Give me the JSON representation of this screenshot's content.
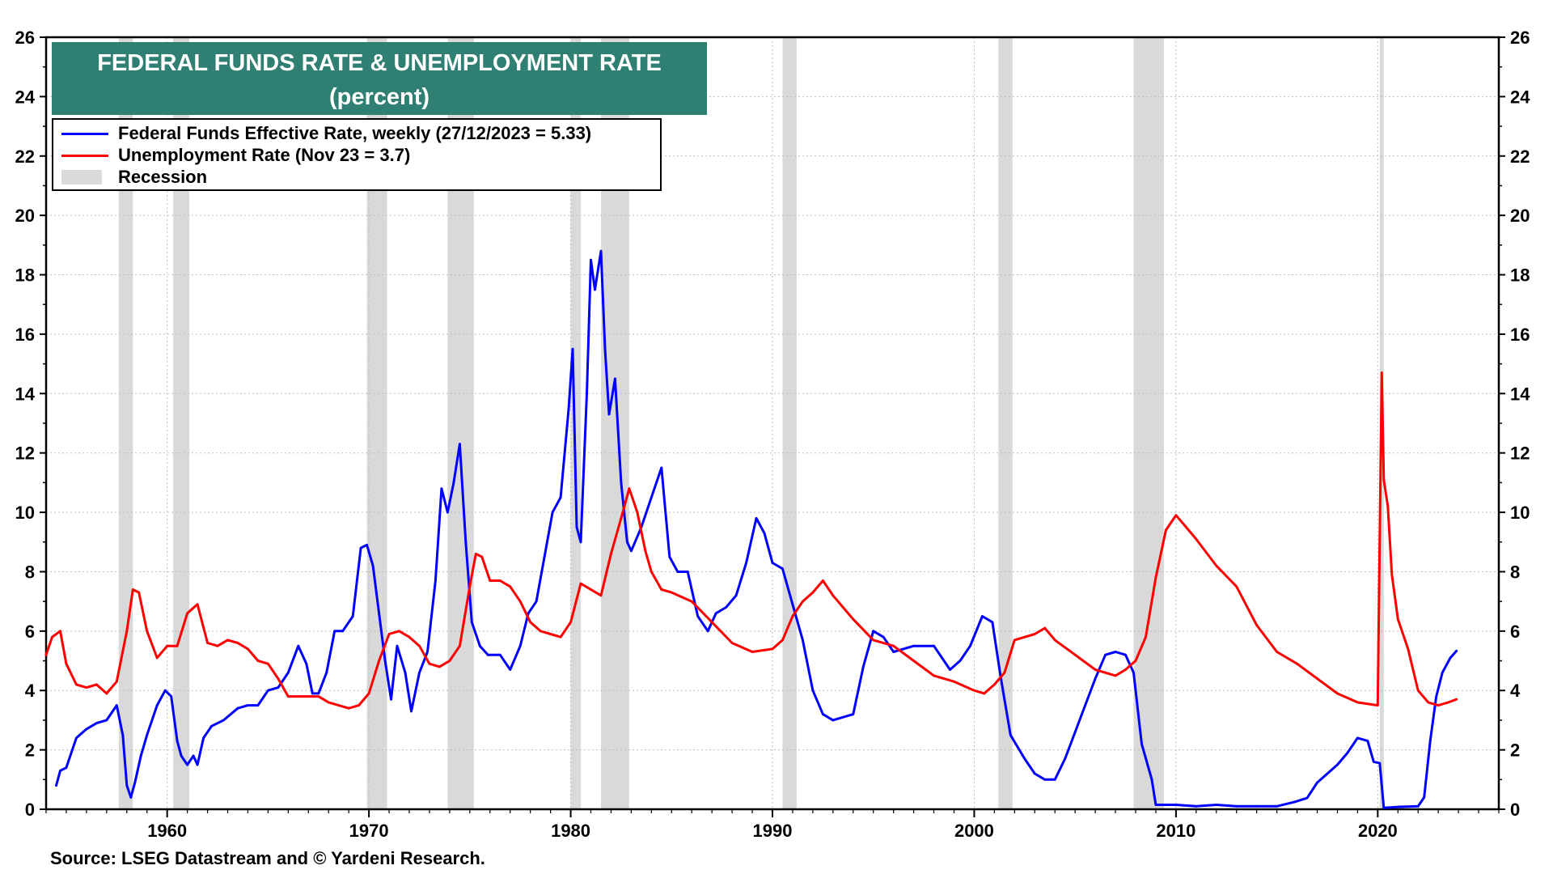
{
  "chart_data": {
    "type": "line",
    "title": "FEDERAL FUNDS RATE & UNEMPLOYMENT RATE",
    "subtitle": "(percent)",
    "xlabel": "",
    "ylabel": "",
    "xlim": [
      1954,
      2026
    ],
    "ylim": [
      0,
      26
    ],
    "x_ticks": [
      1960,
      1970,
      1980,
      1990,
      2000,
      2010,
      2020
    ],
    "x_tick_labels": [
      "1960",
      "1970",
      "1980",
      "1990",
      "2000",
      "2010",
      "2020"
    ],
    "y_ticks": [
      0,
      2,
      4,
      6,
      8,
      10,
      12,
      14,
      16,
      18,
      20,
      22,
      24,
      26
    ],
    "y_tick_labels": [
      "0",
      "2",
      "4",
      "6",
      "8",
      "10",
      "12",
      "14",
      "16",
      "18",
      "20",
      "22",
      "24",
      "26"
    ],
    "grid": true,
    "legend_position": "top-left",
    "recessions": [
      [
        1957.6,
        1958.3
      ],
      [
        1960.3,
        1961.1
      ],
      [
        1969.9,
        1970.9
      ],
      [
        1973.9,
        1975.2
      ],
      [
        1980.0,
        1980.5
      ],
      [
        1981.5,
        1982.9
      ],
      [
        1990.5,
        1991.2
      ],
      [
        2001.2,
        2001.9
      ],
      [
        2007.9,
        2009.4
      ],
      [
        2020.1,
        2020.3
      ]
    ],
    "series": [
      {
        "name": "Federal Funds Effective Rate, weekly (27/12/2023 = 5.33)",
        "color": "#0000ff",
        "x": [
          1954.5,
          1954.7,
          1955.0,
          1955.5,
          1956.0,
          1956.5,
          1957.0,
          1957.5,
          1957.8,
          1958.0,
          1958.2,
          1958.4,
          1958.7,
          1959.0,
          1959.5,
          1959.9,
          1960.2,
          1960.5,
          1960.7,
          1961.0,
          1961.3,
          1961.5,
          1961.8,
          1962.2,
          1962.8,
          1963.5,
          1964.0,
          1964.5,
          1965.0,
          1965.5,
          1966.0,
          1966.5,
          1966.9,
          1967.2,
          1967.5,
          1967.9,
          1968.3,
          1968.7,
          1969.2,
          1969.6,
          1969.9,
          1970.2,
          1970.5,
          1970.8,
          1971.1,
          1971.4,
          1971.8,
          1972.1,
          1972.5,
          1972.9,
          1973.3,
          1973.6,
          1973.9,
          1974.2,
          1974.5,
          1974.8,
          1975.1,
          1975.5,
          1975.9,
          1976.5,
          1977.0,
          1977.5,
          1977.9,
          1978.3,
          1978.7,
          1979.1,
          1979.5,
          1979.9,
          1980.1,
          1980.3,
          1980.5,
          1980.8,
          1981.0,
          1981.2,
          1981.5,
          1981.7,
          1981.9,
          1982.2,
          1982.5,
          1982.8,
          1983.0,
          1983.5,
          1984.0,
          1984.5,
          1984.9,
          1985.3,
          1985.8,
          1986.3,
          1986.8,
          1987.2,
          1987.7,
          1988.2,
          1988.7,
          1989.2,
          1989.6,
          1990.0,
          1990.5,
          1991.0,
          1991.5,
          1992.0,
          1992.5,
          1993.0,
          1994.0,
          1994.5,
          1995.0,
          1995.5,
          1996.0,
          1997.0,
          1998.0,
          1998.8,
          1999.3,
          1999.8,
          2000.4,
          2000.9,
          2001.3,
          2001.8,
          2002.5,
          2003.0,
          2003.5,
          2004.0,
          2004.5,
          2005.0,
          2005.5,
          2006.0,
          2006.5,
          2007.0,
          2007.5,
          2007.9,
          2008.3,
          2008.8,
          2009.0,
          2010.0,
          2011.0,
          2012.0,
          2013.0,
          2014.0,
          2015.0,
          2015.9,
          2016.5,
          2017.0,
          2017.5,
          2018.0,
          2018.5,
          2019.0,
          2019.5,
          2019.8,
          2020.1,
          2020.3,
          2021.0,
          2022.0,
          2022.3,
          2022.6,
          2022.9,
          2023.2,
          2023.6,
          2023.9
        ],
        "values": [
          0.8,
          1.3,
          1.4,
          2.4,
          2.7,
          2.9,
          3.0,
          3.5,
          2.5,
          0.8,
          0.4,
          0.9,
          1.8,
          2.5,
          3.5,
          4.0,
          3.8,
          2.3,
          1.8,
          1.5,
          1.8,
          1.5,
          2.4,
          2.8,
          3.0,
          3.4,
          3.5,
          3.5,
          4.0,
          4.1,
          4.6,
          5.5,
          4.9,
          3.9,
          3.9,
          4.6,
          6.0,
          6.0,
          6.5,
          8.8,
          8.9,
          8.2,
          6.6,
          5.0,
          3.7,
          5.5,
          4.6,
          3.3,
          4.6,
          5.3,
          7.7,
          10.8,
          10.0,
          11.0,
          12.3,
          9.0,
          6.3,
          5.5,
          5.2,
          5.2,
          4.7,
          5.5,
          6.6,
          7.0,
          8.5,
          10.0,
          10.5,
          13.5,
          15.5,
          9.5,
          9.0,
          14.0,
          18.5,
          17.5,
          18.8,
          15.5,
          13.3,
          14.5,
          11.0,
          9.0,
          8.7,
          9.5,
          10.5,
          11.5,
          8.5,
          8.0,
          8.0,
          6.5,
          6.0,
          6.6,
          6.8,
          7.2,
          8.3,
          9.8,
          9.3,
          8.3,
          8.1,
          6.9,
          5.7,
          4.0,
          3.2,
          3.0,
          3.2,
          4.8,
          6.0,
          5.8,
          5.3,
          5.5,
          5.5,
          4.7,
          5.0,
          5.5,
          6.5,
          6.3,
          4.5,
          2.5,
          1.7,
          1.2,
          1.0,
          1.0,
          1.7,
          2.6,
          3.5,
          4.4,
          5.2,
          5.3,
          5.2,
          4.6,
          2.2,
          1.0,
          0.15,
          0.15,
          0.1,
          0.15,
          0.1,
          0.1,
          0.1,
          0.25,
          0.38,
          0.9,
          1.2,
          1.5,
          1.9,
          2.4,
          2.3,
          1.6,
          1.55,
          0.05,
          0.08,
          0.1,
          0.4,
          2.3,
          3.8,
          4.6,
          5.1,
          5.33
        ]
      },
      {
        "name": "Unemployment Rate (Nov 23 = 3.7)",
        "color": "#ff0000",
        "x": [
          1954.0,
          1954.3,
          1954.7,
          1955.0,
          1955.5,
          1956.0,
          1956.5,
          1957.0,
          1957.5,
          1958.0,
          1958.3,
          1958.6,
          1959.0,
          1959.5,
          1960.0,
          1960.5,
          1961.0,
          1961.5,
          1962.0,
          1962.5,
          1963.0,
          1963.5,
          1964.0,
          1964.5,
          1965.0,
          1965.5,
          1966.0,
          1966.5,
          1967.0,
          1967.5,
          1968.0,
          1968.5,
          1969.0,
          1969.5,
          1970.0,
          1970.5,
          1971.0,
          1971.5,
          1972.0,
          1972.5,
          1973.0,
          1973.5,
          1974.0,
          1974.5,
          1975.0,
          1975.3,
          1975.6,
          1976.0,
          1976.5,
          1977.0,
          1977.5,
          1978.0,
          1978.5,
          1979.0,
          1979.5,
          1980.0,
          1980.5,
          1981.0,
          1981.5,
          1982.0,
          1982.5,
          1982.9,
          1983.3,
          1983.7,
          1984.0,
          1984.5,
          1985.0,
          1986.0,
          1987.0,
          1988.0,
          1989.0,
          1990.0,
          1990.5,
          1991.0,
          1991.5,
          1992.0,
          1992.5,
          1993.0,
          1993.5,
          1994.0,
          1995.0,
          1996.0,
          1997.0,
          1998.0,
          1999.0,
          2000.0,
          2000.5,
          2001.0,
          2001.5,
          2002.0,
          2002.5,
          2003.0,
          2003.5,
          2004.0,
          2005.0,
          2006.0,
          2007.0,
          2007.5,
          2008.0,
          2008.5,
          2009.0,
          2009.5,
          2010.0,
          2010.5,
          2011.0,
          2012.0,
          2013.0,
          2014.0,
          2015.0,
          2016.0,
          2017.0,
          2018.0,
          2019.0,
          2020.0,
          2020.2,
          2020.3,
          2020.5,
          2020.7,
          2021.0,
          2021.5,
          2022.0,
          2022.5,
          2023.0,
          2023.5,
          2023.9
        ],
        "values": [
          5.2,
          5.8,
          6.0,
          4.9,
          4.2,
          4.1,
          4.2,
          3.9,
          4.3,
          6.0,
          7.4,
          7.3,
          6.0,
          5.1,
          5.5,
          5.5,
          6.6,
          6.9,
          5.6,
          5.5,
          5.7,
          5.6,
          5.4,
          5.0,
          4.9,
          4.4,
          3.8,
          3.8,
          3.8,
          3.8,
          3.6,
          3.5,
          3.4,
          3.5,
          3.9,
          5.0,
          5.9,
          6.0,
          5.8,
          5.5,
          4.9,
          4.8,
          5.0,
          5.5,
          7.5,
          8.6,
          8.5,
          7.7,
          7.7,
          7.5,
          7.0,
          6.3,
          6.0,
          5.9,
          5.8,
          6.3,
          7.6,
          7.4,
          7.2,
          8.6,
          9.8,
          10.8,
          10.0,
          8.7,
          8.0,
          7.4,
          7.3,
          7.0,
          6.3,
          5.6,
          5.3,
          5.4,
          5.7,
          6.5,
          7.0,
          7.3,
          7.7,
          7.2,
          6.8,
          6.4,
          5.7,
          5.5,
          5.0,
          4.5,
          4.3,
          4.0,
          3.9,
          4.2,
          4.6,
          5.7,
          5.8,
          5.9,
          6.1,
          5.7,
          5.2,
          4.7,
          4.5,
          4.7,
          5.0,
          5.8,
          7.8,
          9.4,
          9.9,
          9.5,
          9.1,
          8.2,
          7.5,
          6.2,
          5.3,
          4.9,
          4.4,
          3.9,
          3.6,
          3.5,
          14.7,
          11.1,
          10.2,
          7.9,
          6.4,
          5.4,
          4.0,
          3.6,
          3.5,
          3.6,
          3.7
        ]
      }
    ],
    "legend": {
      "fed": "Federal Funds Effective Rate, weekly (27/12/2023 = 5.33)",
      "unemp": "Unemployment Rate (Nov 23 = 3.7)",
      "recession": "Recession"
    },
    "colors": {
      "fed": "#0000ff",
      "unemp": "#ff0000",
      "recession": "#d9d9d9",
      "title_bg": "#2f7f72"
    },
    "source": "Source: LSEG Datastream and © Yardeni Research."
  }
}
